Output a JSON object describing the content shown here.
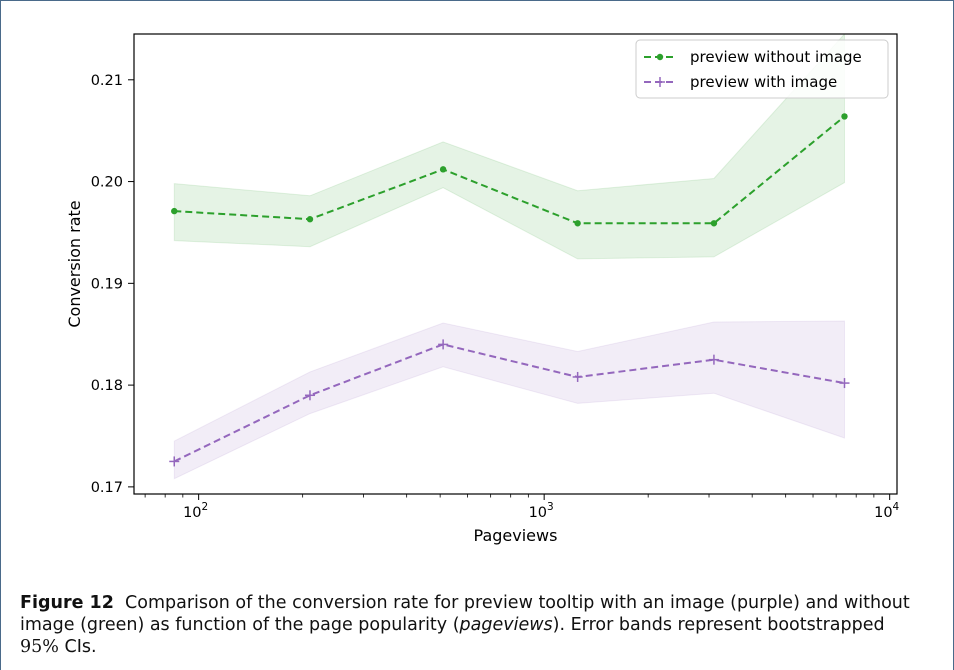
{
  "chart_data": {
    "type": "line",
    "xscale": "log",
    "xlabel": "Pageviews",
    "ylabel": "Conversion rate",
    "xlim": [
      65,
      10500
    ],
    "ylim": [
      0.1693,
      0.2145
    ],
    "x_ticks": [
      {
        "value": 100,
        "base": "10",
        "exp": "2"
      },
      {
        "value": 1000,
        "base": "10",
        "exp": "3"
      },
      {
        "value": 10000,
        "base": "10",
        "exp": "4"
      }
    ],
    "y_ticks": [
      "0.17",
      "0.18",
      "0.19",
      "0.20",
      "0.21"
    ],
    "legend_position": "top-right",
    "series": [
      {
        "name": "preview without image",
        "color": "#2ca02c",
        "marker": "dot",
        "x": [
          85,
          210,
          510,
          1250,
          3100,
          7400
        ],
        "y": [
          0.1971,
          0.1963,
          0.2012,
          0.1959,
          0.1959,
          0.2064
        ],
        "ci_lower": [
          0.1942,
          0.1936,
          0.1994,
          0.1924,
          0.1926,
          0.1999
        ],
        "ci_upper": [
          0.1998,
          0.1986,
          0.2039,
          0.1991,
          0.2003,
          0.2145
        ]
      },
      {
        "name": "preview with image",
        "color": "#9467bd",
        "marker": "plus",
        "x": [
          85,
          210,
          510,
          1250,
          3100,
          7400
        ],
        "y": [
          0.1725,
          0.179,
          0.184,
          0.1808,
          0.1825,
          0.1802
        ],
        "ci_lower": [
          0.1708,
          0.1772,
          0.1818,
          0.1782,
          0.1792,
          0.1748
        ],
        "ci_upper": [
          0.1745,
          0.1813,
          0.1861,
          0.1833,
          0.1862,
          0.1863
        ]
      }
    ]
  },
  "caption": {
    "label": "Figure 12",
    "text": "Comparison of the conversion rate for preview tooltip with an image (purple) and without image (green) as function of the page popularity (",
    "italic": "pageviews",
    "text2": "). Error bands represent bootstrapped ",
    "math": "95%",
    "text3": " CIs."
  }
}
